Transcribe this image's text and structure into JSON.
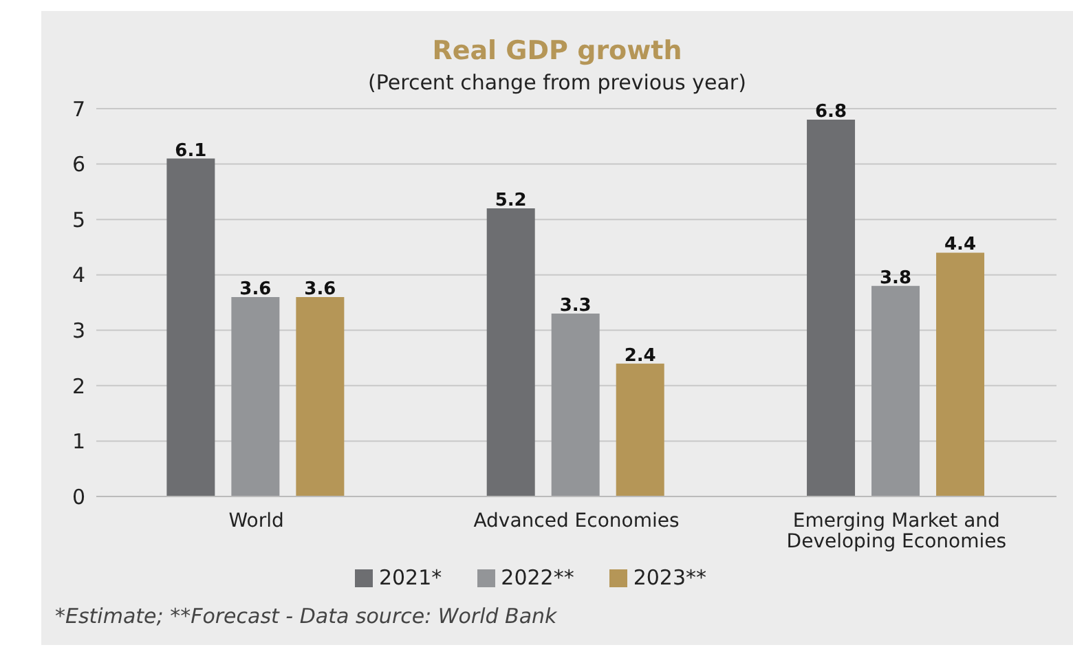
{
  "chart_data": {
    "type": "bar",
    "title": "Real GDP growth",
    "subtitle": "(Percent change from previous year)",
    "categories": [
      "World",
      "Advanced Economies",
      "Emerging Market and Developing Economies"
    ],
    "series": [
      {
        "name": "2021*",
        "color": "#6d6e71",
        "values": [
          6.1,
          5.2,
          6.8
        ]
      },
      {
        "name": "2022**",
        "color": "#939598",
        "values": [
          3.6,
          3.3,
          3.8
        ]
      },
      {
        "name": "2023**",
        "color": "#b59657",
        "values": [
          3.6,
          2.4,
          4.4
        ]
      }
    ],
    "ylim": [
      0,
      7
    ],
    "yticks": [
      0,
      1,
      2,
      3,
      4,
      5,
      6,
      7
    ],
    "grid": "y",
    "legend": "bottom",
    "data_labels": true,
    "annotations": [
      "*Estimate; **Forecast - Data source: World Bank"
    ]
  }
}
